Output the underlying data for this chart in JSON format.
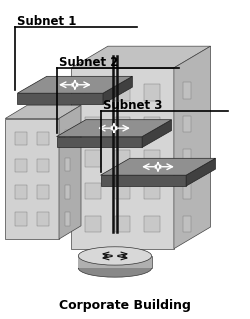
{
  "bottom_label": "Corporate Building",
  "subnet_labels": [
    "Subnet 1",
    "Subnet 2",
    "Subnet 3"
  ],
  "bg_color": "#ffffff",
  "line_color": "#000000",
  "label_color": "#000000",
  "font_size_label": 8.5,
  "font_size_bottom": 9,
  "xlim": [
    0,
    10
  ],
  "ylim": [
    0,
    13
  ],
  "building_main_front": "#d8d8d8",
  "building_main_top": "#c5c5c5",
  "building_main_side": "#bbbbbb",
  "building_left_front": "#d0d0d0",
  "building_left_top": "#c0c0c0",
  "building_left_side": "#b0b0b0",
  "switch_top": "#909090",
  "switch_front": "#606060",
  "switch_side": "#505050",
  "router_top": "#d0d0d0",
  "router_body": "#a0a0a0",
  "router_bottom": "#888888"
}
